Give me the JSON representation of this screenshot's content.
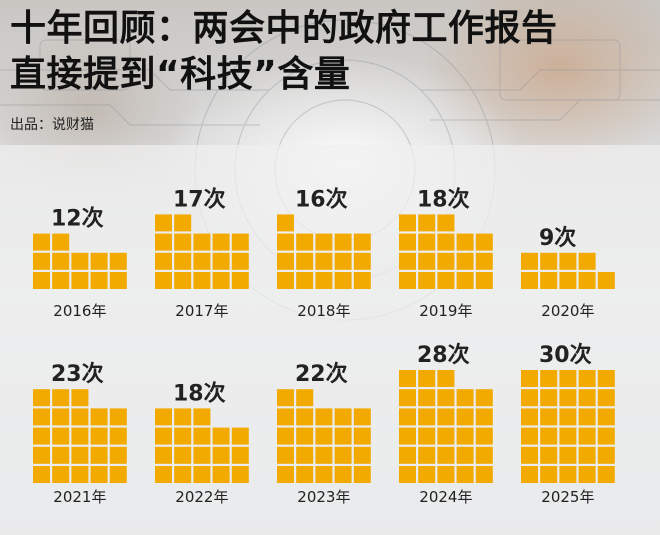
{
  "header": {
    "title_line1": "十年回顾：两会中的政府工作报告",
    "title_line2": "直接提到“科技”含量",
    "source": "出品：说财猫"
  },
  "colors": {
    "square": "#f2a900",
    "text": "#222222"
  },
  "chart_data": {
    "type": "bar",
    "title": "十年回顾：两会中的政府工作报告直接提到“科技”含量",
    "xlabel": "",
    "ylabel": "",
    "categories": [
      "2016年",
      "2017年",
      "2018年",
      "2019年",
      "2020年",
      "2021年",
      "2022年",
      "2023年",
      "2024年",
      "2025年"
    ],
    "values": [
      12,
      17,
      16,
      18,
      9,
      23,
      18,
      22,
      28,
      30
    ],
    "value_labels": [
      "12次",
      "17次",
      "16次",
      "18次",
      "9次",
      "23次",
      "18次",
      "22次",
      "28次",
      "30次"
    ]
  }
}
